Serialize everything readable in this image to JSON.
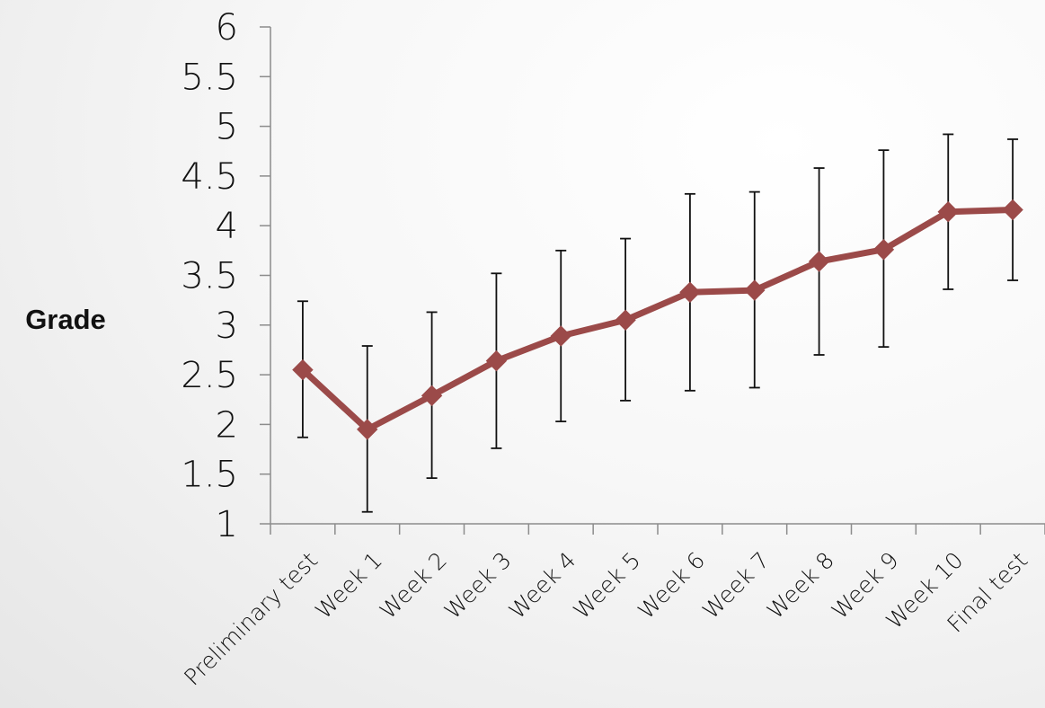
{
  "chart_data": {
    "type": "line",
    "ylabel": "Grade",
    "xlabel": "",
    "ylim": [
      1,
      6
    ],
    "ytick_step": 0.5,
    "yticks": [
      "1",
      "1.5",
      "2",
      "2.5",
      "3",
      "3.5",
      "4",
      "4.5",
      "5",
      "5.5",
      "6"
    ],
    "categories": [
      "Preliminary test",
      "Week 1",
      "Week 2",
      "Week 3",
      "Week 4",
      "Week 5",
      "Week 6",
      "Week 7",
      "Week 8",
      "Week 9",
      "Week 10",
      "Final test"
    ],
    "series": [
      {
        "values": [
          2.55,
          1.95,
          2.29,
          2.64,
          2.89,
          3.05,
          3.33,
          3.35,
          3.64,
          3.76,
          4.14,
          4.16
        ],
        "error_low": [
          1.87,
          1.12,
          1.46,
          1.76,
          2.03,
          2.24,
          2.34,
          2.37,
          2.7,
          2.78,
          3.36,
          3.45
        ],
        "error_high": [
          3.24,
          2.79,
          3.13,
          3.52,
          3.75,
          3.87,
          4.32,
          4.34,
          4.58,
          4.76,
          4.92,
          4.87
        ],
        "color": "#9b4a49",
        "marker": "diamond"
      }
    ],
    "grid": false,
    "legend": "none"
  }
}
